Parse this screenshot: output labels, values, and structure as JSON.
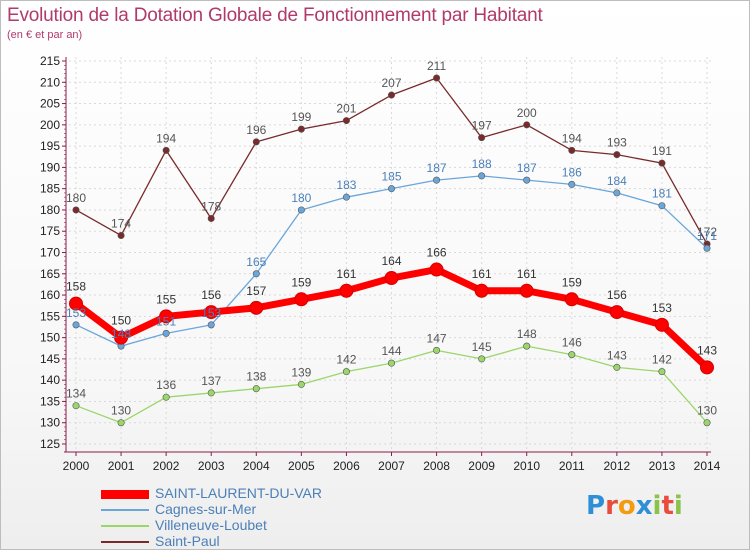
{
  "title": "Evolution de la Dotation Globale de Fonctionnement par Habitant",
  "subtitle": "(en € et par an)",
  "logo": {
    "p": "P",
    "r": "r",
    "o": "o",
    "x": "x",
    "i1": "i",
    "t": "t",
    "i2": "i"
  },
  "colors": {
    "title": "#b03a6b",
    "axis": "#8a1c4a",
    "grid": "#d9d9d9"
  },
  "chart_data": {
    "type": "line",
    "x": [
      "2000",
      "2001",
      "2002",
      "2003",
      "2004",
      "2005",
      "2006",
      "2007",
      "2008",
      "2009",
      "2010",
      "2011",
      "2012",
      "2013",
      "2014"
    ],
    "ylim": [
      125,
      215
    ],
    "yticks": [
      125,
      130,
      135,
      140,
      145,
      150,
      155,
      160,
      165,
      170,
      175,
      180,
      185,
      190,
      195,
      200,
      205,
      210,
      215
    ],
    "grid": true,
    "legend_position": "bottom-left",
    "series": [
      {
        "name": "SAINT-LAURENT-DU-VAR",
        "color": "#ff0000",
        "label_color": "#333333",
        "values": [
          158,
          150,
          155,
          156,
          157,
          159,
          161,
          164,
          166,
          161,
          161,
          159,
          156,
          153,
          143
        ]
      },
      {
        "name": "Cagnes-sur-Mer",
        "color": "#6aa6da",
        "label_color": "#4b7fb8",
        "values": [
          153,
          148,
          151,
          153,
          165,
          180,
          183,
          185,
          187,
          188,
          187,
          186,
          184,
          181,
          171
        ]
      },
      {
        "name": "Villeneuve-Loubet",
        "color": "#9bd66b",
        "label_color": "#555555",
        "values": [
          134,
          130,
          136,
          137,
          138,
          139,
          142,
          144,
          147,
          145,
          148,
          146,
          143,
          142,
          130
        ]
      },
      {
        "name": "Saint-Paul",
        "color": "#7a2a2a",
        "label_color": "#555555",
        "values": [
          180,
          174,
          194,
          178,
          196,
          199,
          201,
          207,
          211,
          197,
          200,
          194,
          193,
          191,
          172
        ]
      }
    ]
  }
}
